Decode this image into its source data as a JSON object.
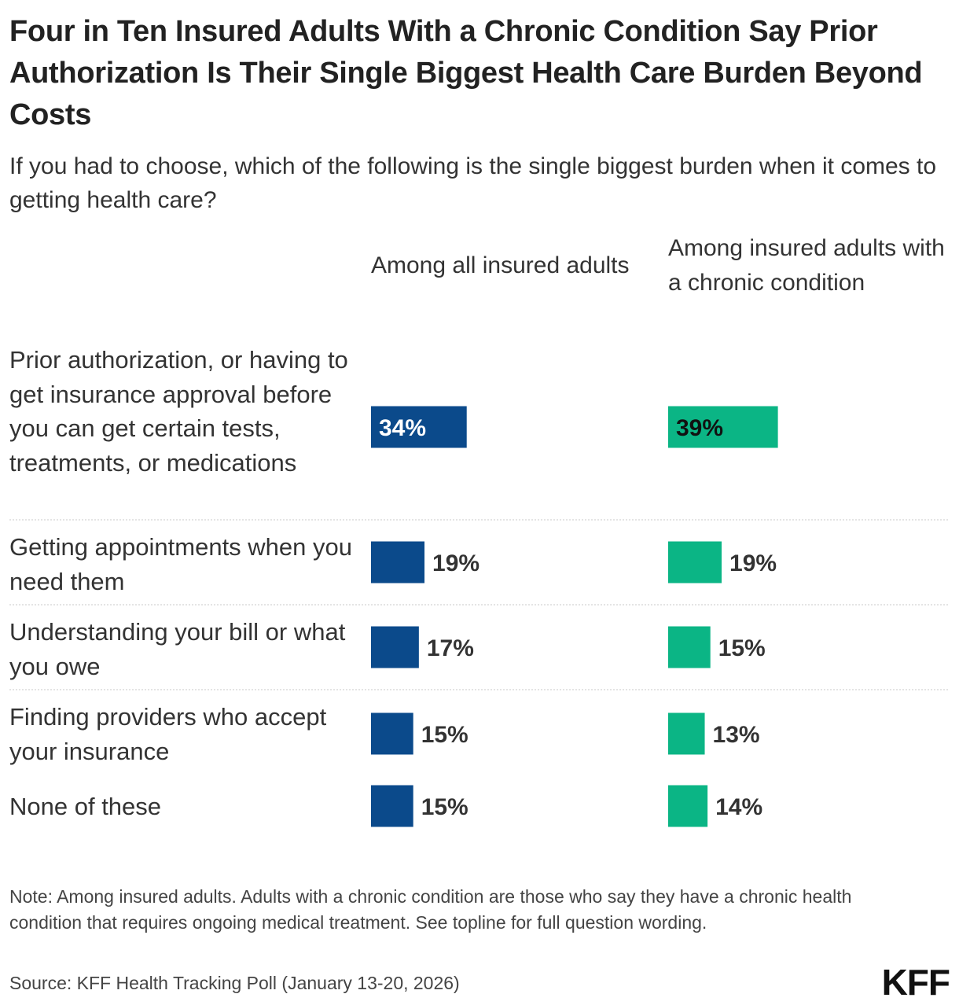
{
  "title": "Four in Ten Insured Adults With a Chronic Condition Say Prior Authorization Is Their Single Biggest Health Care Burden Beyond Costs",
  "subtitle": "If you had to choose, which of the following is the single biggest burden when it comes to getting health care?",
  "colors": {
    "series_0": "#0b4a8b",
    "series_1": "#0bb585"
  },
  "chart_data": {
    "type": "bar",
    "categories": [
      "Prior authorization, or having to get insurance approval before you can get certain tests, treatments, or medications",
      "Getting appointments when you need them",
      "Understanding your bill or what you owe",
      "Finding providers who accept your insurance",
      "None of these"
    ],
    "series": [
      {
        "name": "Among all insured adults",
        "values": [
          34,
          19,
          17,
          15,
          15
        ]
      },
      {
        "name": "Among insured adults with a chronic condition",
        "values": [
          39,
          19,
          15,
          13,
          14
        ]
      }
    ],
    "value_suffix": "%"
  },
  "note": "Note: Among insured adults. Adults with a chronic condition are those who say they have a chronic health condition that requires ongoing medical treatment. See topline for full question wording.",
  "source": "Source: KFF Health Tracking Poll (January 13-20, 2026)",
  "logo": "KFF"
}
